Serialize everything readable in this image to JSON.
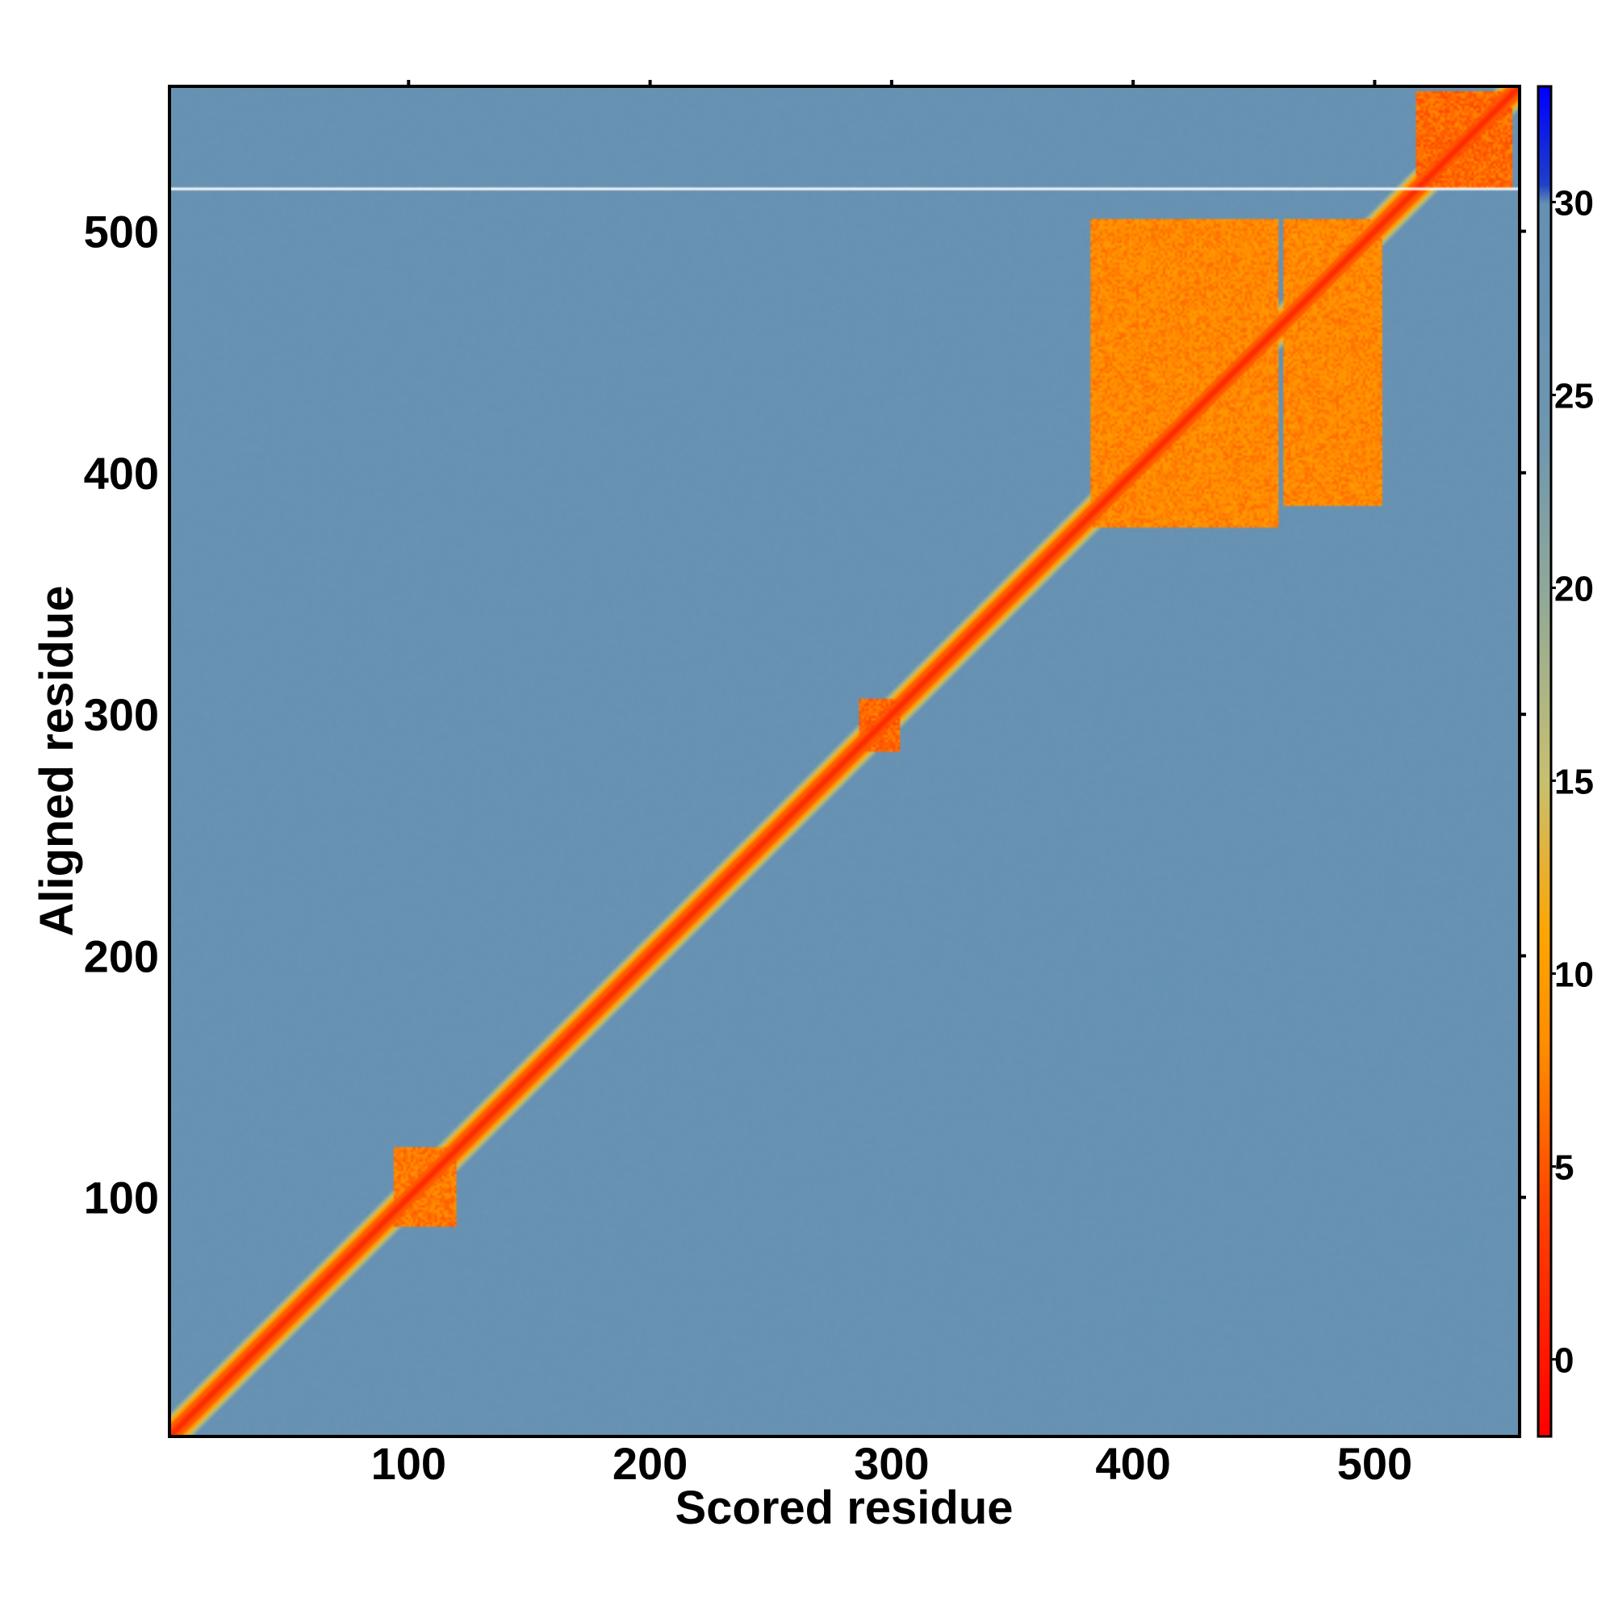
{
  "chart_data": {
    "type": "heatmap",
    "title": "",
    "xlabel": "Scored residue",
    "ylabel": "Aligned residue",
    "xlim": [
      1,
      560
    ],
    "ylim": [
      1,
      560
    ],
    "xticks": [
      100,
      200,
      300,
      400,
      500
    ],
    "xtick_labels": [
      "100",
      "200",
      "300",
      "400",
      "500"
    ],
    "yticks": [
      100,
      200,
      300,
      400,
      500
    ],
    "ytick_labels": [
      "100",
      "200",
      "300",
      "400",
      "500"
    ],
    "colorbar": {
      "range": [
        -2,
        33
      ],
      "ticks": [
        0,
        5,
        10,
        15,
        20,
        25,
        30
      ],
      "tick_labels": [
        "0",
        "5",
        "10",
        "15",
        "20",
        "25",
        "30"
      ],
      "stops": [
        {
          "value": -2,
          "color": "#ff0000"
        },
        {
          "value": 4,
          "color": "#ff4500"
        },
        {
          "value": 8,
          "color": "#ff8c00"
        },
        {
          "value": 11,
          "color": "#ffa500"
        },
        {
          "value": 15,
          "color": "#c8c070"
        },
        {
          "value": 20,
          "color": "#8fa89a"
        },
        {
          "value": 24,
          "color": "#6f96b0"
        },
        {
          "value": 30,
          "color": "#6490b4"
        },
        {
          "value": 30.5,
          "color": "#2040c8"
        },
        {
          "value": 33,
          "color": "#0000ff"
        }
      ]
    },
    "background_value": 28,
    "diagonal_value": 1,
    "low_error_regions": [
      {
        "x": [
          383,
          460
        ],
        "y": [
          378,
          505
        ],
        "value": 6
      },
      {
        "x": [
          463,
          503
        ],
        "y": [
          387,
          505
        ],
        "value": 6
      },
      {
        "x": [
          518,
          557
        ],
        "y": [
          518,
          558
        ],
        "value": 4
      },
      {
        "x": [
          287,
          303
        ],
        "y": [
          285,
          306
        ],
        "value": 4
      },
      {
        "x": [
          94,
          119
        ],
        "y": [
          88,
          120
        ],
        "value": 5
      }
    ],
    "gap_row_y": 518
  }
}
